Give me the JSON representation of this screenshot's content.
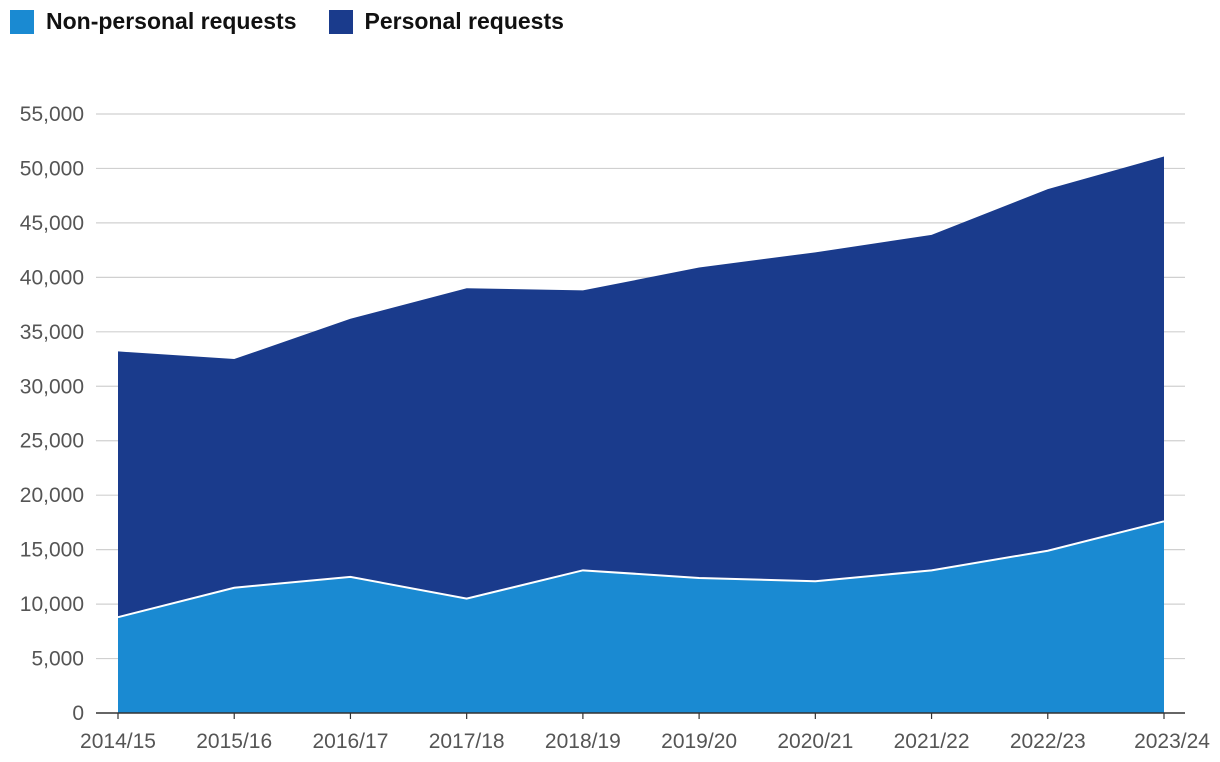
{
  "chart_data": {
    "type": "area",
    "stacked": true,
    "title": "",
    "xlabel": "",
    "ylabel": "",
    "categories": [
      "2014/15",
      "2015/16",
      "2016/17",
      "2017/18",
      "2018/19",
      "2019/20",
      "2020/21",
      "2021/22",
      "2022/23",
      "2023/24"
    ],
    "series": [
      {
        "name": "Non-personal requests",
        "color": "#1a8ad2",
        "values": [
          8800,
          11500,
          12500,
          10500,
          13100,
          12400,
          12100,
          13100,
          14900,
          17600
        ]
      },
      {
        "name": "Personal requests",
        "color": "#1a3b8c",
        "values": [
          24400,
          21000,
          23700,
          28500,
          25700,
          28500,
          30200,
          30800,
          33200,
          33500
        ]
      }
    ],
    "ylim": [
      0,
      55000
    ],
    "yticks": [
      0,
      5000,
      10000,
      15000,
      20000,
      25000,
      30000,
      35000,
      40000,
      45000,
      50000,
      55000
    ],
    "ytick_labels": [
      "0",
      "5,000",
      "10,000",
      "15,000",
      "20,000",
      "25,000",
      "30,000",
      "35,000",
      "40,000",
      "45,000",
      "50,000",
      "55,000"
    ],
    "grid": true,
    "legend_position": "top-left"
  }
}
